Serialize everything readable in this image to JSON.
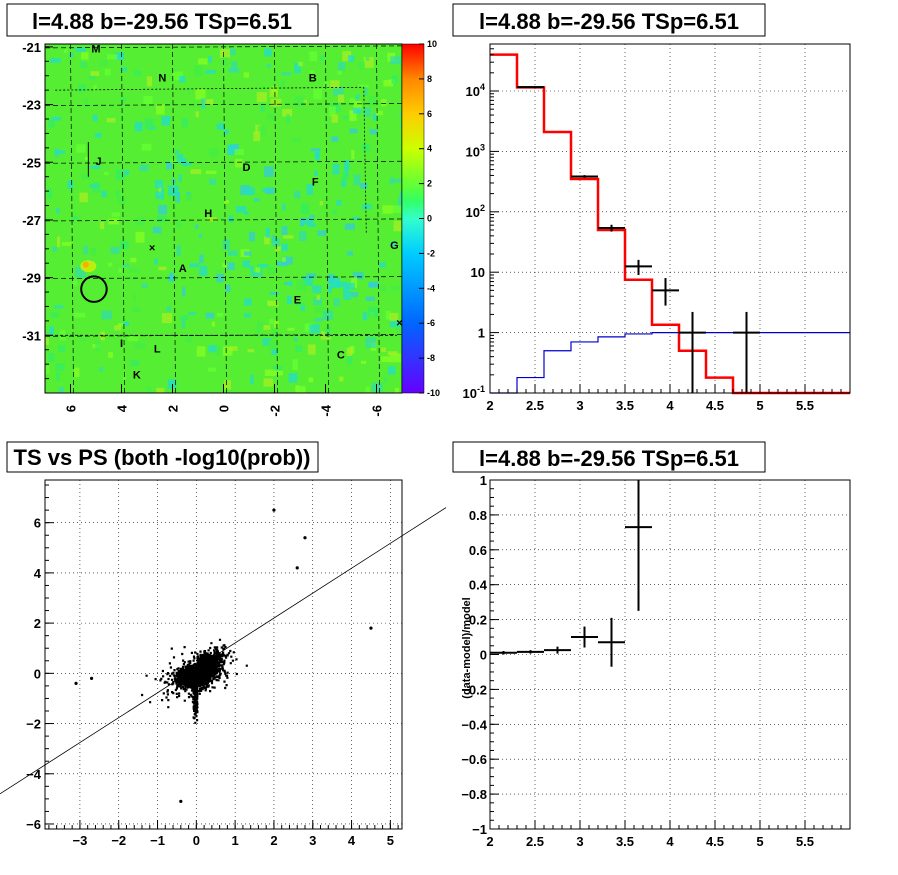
{
  "colors": {
    "background": "#ffffff",
    "model_line": "#ff0000",
    "prior_line": "#0000cc",
    "data_marker": "#000000",
    "grid": "#000000"
  },
  "chart_data": [
    {
      "type": "heatmap",
      "title": "l=4.88 b=-29.56 TSp=6.51",
      "x_ticks": [
        "6",
        "4",
        "2",
        "0",
        "-2",
        "-4",
        "-6"
      ],
      "x_tick_values": [
        6,
        4,
        2,
        0,
        -2,
        -4,
        -6
      ],
      "xlim": [
        7,
        -7
      ],
      "y_ticks": [
        "-21",
        "-23",
        "-25",
        "-27",
        "-29",
        "-31"
      ],
      "y_tick_values": [
        -21,
        -23,
        -25,
        -27,
        -29,
        -31
      ],
      "ylim": [
        -33,
        -20.9
      ],
      "colorbar_ticks": [
        "10",
        "8",
        "6",
        "4",
        "2",
        "0",
        "-2",
        "-4",
        "-6",
        "-8",
        "-10"
      ],
      "colorbar_values": [
        10,
        8,
        6,
        4,
        2,
        0,
        -2,
        -4,
        -6,
        -8,
        -10
      ],
      "colorscale": [
        "#6600ff",
        "#3333ff",
        "#0099ff",
        "#00ccff",
        "#33ffdd",
        "#33ff99",
        "#66ff33",
        "#ccff00",
        "#ffcc00",
        "#ff8800",
        "#ff3300",
        "#ff0000"
      ],
      "region_labels": [
        {
          "text": "M",
          "l": 5.0,
          "b": -21.2
        },
        {
          "text": "N",
          "l": 2.4,
          "b": -22.2
        },
        {
          "text": "B",
          "l": -3.5,
          "b": -22.2
        },
        {
          "text": "J",
          "l": 4.9,
          "b": -25.1
        },
        {
          "text": "D",
          "l": -0.9,
          "b": -25.3
        },
        {
          "text": "F",
          "l": -3.6,
          "b": -25.8
        },
        {
          "text": "H",
          "l": 0.6,
          "b": -26.9
        },
        {
          "text": "G",
          "l": -6.7,
          "b": -28.0
        },
        {
          "text": "A",
          "l": 1.6,
          "b": -28.8
        },
        {
          "text": "E",
          "l": -2.9,
          "b": -29.9
        },
        {
          "text": "I",
          "l": 4.0,
          "b": -31.4
        },
        {
          "text": "L",
          "l": 2.6,
          "b": -31.6
        },
        {
          "text": "C",
          "l": -4.6,
          "b": -31.8
        },
        {
          "text": "K",
          "l": 3.4,
          "b": -32.5
        }
      ],
      "source_circle": {
        "l": 5.08,
        "b": -29.4,
        "radius_deg": 0.5
      }
    },
    {
      "type": "line",
      "title": "l=4.88 b=-29.56 TSp=6.51",
      "log_y": true,
      "xlim": [
        2,
        6
      ],
      "ylim": [
        0.1,
        60000
      ],
      "x_ticks": [
        "2",
        "2.5",
        "3",
        "3.5",
        "4",
        "4.5",
        "5",
        "5.5"
      ],
      "x_tick_values": [
        2,
        2.5,
        3,
        3.5,
        4,
        4.5,
        5,
        5.5
      ],
      "y_ticks": [
        "10^-1",
        "1",
        "10",
        "10^2",
        "10^3",
        "10^4"
      ],
      "y_tick_values": [
        0.1,
        1,
        10,
        100,
        1000,
        10000
      ],
      "series": [
        {
          "role": "model",
          "color": "#ff0000",
          "bin_edges": [
            2.0,
            2.3,
            2.6,
            2.9,
            3.2,
            3.5,
            3.8,
            4.1,
            4.4,
            4.7,
            5.0,
            6.0
          ],
          "values": [
            40000,
            11500,
            2100,
            350,
            50,
            7.5,
            1.35,
            0.5,
            0.18,
            0.1,
            0.1
          ]
        },
        {
          "role": "prior",
          "color": "#0000cc",
          "bin_edges": [
            2.0,
            2.3,
            2.6,
            2.9,
            3.2,
            3.5,
            3.8,
            4.1,
            4.4,
            4.7,
            5.0,
            6.0
          ],
          "values": [
            0.1,
            0.18,
            0.5,
            0.7,
            0.85,
            0.95,
            1.0,
            1.0,
            1.0,
            1.0,
            1.0
          ]
        },
        {
          "role": "data",
          "color": "#000000",
          "points": [
            {
              "x": 2.45,
              "y": 11600,
              "xerr": 0.15,
              "ylo": 11400,
              "yhi": 11800
            },
            {
              "x": 3.05,
              "y": 385,
              "xerr": 0.15,
              "ylo": 365,
              "yhi": 405
            },
            {
              "x": 3.35,
              "y": 54,
              "xerr": 0.15,
              "ylo": 47,
              "yhi": 61
            },
            {
              "x": 3.65,
              "y": 12.5,
              "xerr": 0.15,
              "ylo": 9,
              "yhi": 16
            },
            {
              "x": 3.95,
              "y": 5,
              "xerr": 0.15,
              "ylo": 2.8,
              "yhi": 8
            },
            {
              "x": 4.25,
              "y": 1,
              "xerr": 0.15,
              "ylo": 0.1,
              "yhi": 2.2
            },
            {
              "x": 4.85,
              "y": 1,
              "xerr": 0.15,
              "ylo": 0.1,
              "yhi": 2.2
            }
          ]
        }
      ]
    },
    {
      "type": "scatter",
      "title": "TS vs PS (both -log10(prob))",
      "xlim": [
        -3.9,
        5.3
      ],
      "ylim": [
        -6.2,
        7.7
      ],
      "x_ticks": [
        "−3",
        "−2",
        "−1",
        "0",
        "1",
        "2",
        "3",
        "4",
        "5"
      ],
      "x_tick_values": [
        -3,
        -2,
        -1,
        0,
        1,
        2,
        3,
        4,
        5
      ],
      "y_ticks": [
        "−6",
        "−4",
        "−2",
        "0",
        "2",
        "4",
        "6"
      ],
      "y_tick_values": [
        -6,
        -4,
        -2,
        0,
        2,
        4,
        6
      ],
      "fit_line": {
        "slope": 1,
        "intercept": 0
      },
      "highlighted_points": [
        {
          "x": 2.0,
          "y": 6.5
        },
        {
          "x": 2.8,
          "y": 5.4
        },
        {
          "x": 4.5,
          "y": 1.8
        },
        {
          "x": 2.6,
          "y": 4.2
        },
        {
          "x": -3.1,
          "y": -0.4
        },
        {
          "x": -2.7,
          "y": -0.2
        },
        {
          "x": -0.4,
          "y": -5.1
        }
      ]
    },
    {
      "type": "line",
      "title": "l=4.88 b=-29.56 TSp=6.51",
      "ylabel": "(data-model)/model",
      "xlim": [
        2,
        6
      ],
      "ylim": [
        -1,
        1
      ],
      "x_ticks": [
        "2",
        "2.5",
        "3",
        "3.5",
        "4",
        "4.5",
        "5",
        "5.5"
      ],
      "x_tick_values": [
        2,
        2.5,
        3,
        3.5,
        4,
        4.5,
        5,
        5.5
      ],
      "y_ticks": [
        "−1",
        "−0.8",
        "−0.6",
        "−0.4",
        "−0.2",
        "0",
        "0.2",
        "0.4",
        "0.6",
        "0.8",
        "1"
      ],
      "y_tick_values": [
        -1,
        -0.8,
        -0.6,
        -0.4,
        -0.2,
        0,
        0.2,
        0.4,
        0.6,
        0.8,
        1
      ],
      "series": [
        {
          "role": "residual",
          "color": "#000000",
          "points": [
            {
              "x": 2.15,
              "y": 0.01,
              "xerr": 0.15,
              "ylo": 0.0,
              "yhi": 0.02
            },
            {
              "x": 2.45,
              "y": 0.015,
              "xerr": 0.15,
              "ylo": 0.005,
              "yhi": 0.025
            },
            {
              "x": 2.75,
              "y": 0.025,
              "xerr": 0.15,
              "ylo": 0.005,
              "yhi": 0.045
            },
            {
              "x": 3.05,
              "y": 0.1,
              "xerr": 0.15,
              "ylo": 0.04,
              "yhi": 0.16
            },
            {
              "x": 3.35,
              "y": 0.07,
              "xerr": 0.15,
              "ylo": -0.07,
              "yhi": 0.21
            },
            {
              "x": 3.65,
              "y": 0.73,
              "xerr": 0.15,
              "ylo": 0.25,
              "yhi": 1.0
            }
          ]
        }
      ]
    }
  ]
}
